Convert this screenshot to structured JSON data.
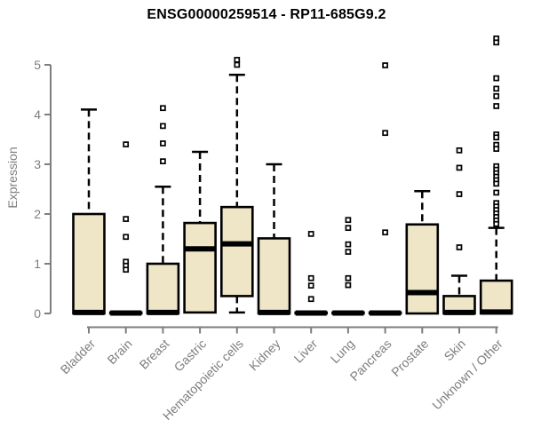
{
  "title": "ENSG00000259514 - RP11-685G9.2",
  "chart_data": {
    "type": "boxplot",
    "title": "ENSG00000259514 - RP11-685G9.2",
    "xlabel": "",
    "ylabel": "Expression",
    "ylim": [
      0,
      5
    ],
    "yticks": [
      0,
      1,
      2,
      3,
      4,
      5
    ],
    "grid": false,
    "legend": "none",
    "colors": {
      "box_fill": "#EFE5C7",
      "box_border": "#000000",
      "median": "#000000",
      "axis": "#7E7E7E",
      "title_color": "#000000",
      "background": "#FFFFFF"
    },
    "categories": [
      {
        "label": "Bladder",
        "q1": 0,
        "median": 0.02,
        "q3": 2.0,
        "whisker_high": 4.1,
        "whisker_low": null,
        "outliers": []
      },
      {
        "label": "Brain",
        "q1": 0,
        "median": 0.01,
        "q3": 0.02,
        "whisker_high": null,
        "whisker_low": null,
        "outliers": [
          3.4,
          1.9,
          1.54,
          1.04,
          0.96,
          0.88
        ]
      },
      {
        "label": "Breast",
        "q1": 0,
        "median": 0.02,
        "q3": 1.0,
        "whisker_high": 2.55,
        "whisker_low": null,
        "outliers": [
          4.13,
          3.77,
          3.42,
          3.06
        ]
      },
      {
        "label": "Gastric",
        "q1": 0.02,
        "median": 1.3,
        "q3": 1.82,
        "whisker_high": 3.25,
        "whisker_low": null,
        "outliers": []
      },
      {
        "label": "Hematopoietic cells",
        "q1": 0.35,
        "median": 1.4,
        "q3": 2.14,
        "whisker_high": 4.8,
        "whisker_low": 0.02,
        "outliers": [
          5.1,
          5.0
        ]
      },
      {
        "label": "Kidney",
        "q1": 0,
        "median": 0.02,
        "q3": 1.51,
        "whisker_high": 3.0,
        "whisker_low": null,
        "outliers": []
      },
      {
        "label": "Liver",
        "q1": 0,
        "median": 0.01,
        "q3": 0.02,
        "whisker_high": null,
        "whisker_low": null,
        "outliers": [
          1.6,
          0.71,
          0.56,
          0.29
        ]
      },
      {
        "label": "Lung",
        "q1": 0,
        "median": 0.01,
        "q3": 0.02,
        "whisker_high": null,
        "whisker_low": null,
        "outliers": [
          1.88,
          1.72,
          1.39,
          1.24,
          0.71,
          0.57
        ]
      },
      {
        "label": "Pancreas",
        "q1": 0,
        "median": 0.01,
        "q3": 0.02,
        "whisker_high": null,
        "whisker_low": null,
        "outliers": [
          4.99,
          3.63,
          1.63
        ]
      },
      {
        "label": "Prostate",
        "q1": 0,
        "median": 0.42,
        "q3": 1.79,
        "whisker_high": 2.46,
        "whisker_low": null,
        "outliers": []
      },
      {
        "label": "Skin",
        "q1": 0,
        "median": 0.02,
        "q3": 0.35,
        "whisker_high": 0.76,
        "whisker_low": null,
        "outliers": [
          3.28,
          2.93,
          2.4,
          1.33
        ]
      },
      {
        "label": "Unknown / Other",
        "q1": 0,
        "median": 0.03,
        "q3": 0.66,
        "whisker_high": 1.72,
        "whisker_low": null,
        "outliers": [
          5.53,
          5.45,
          4.73,
          4.52,
          4.37,
          4.17,
          3.6,
          3.54,
          3.39,
          3.31,
          2.96,
          2.89,
          2.82,
          2.75,
          2.68,
          2.61,
          2.43,
          2.22,
          2.15,
          2.08,
          2.01,
          1.94,
          1.87,
          1.8
        ]
      }
    ]
  }
}
